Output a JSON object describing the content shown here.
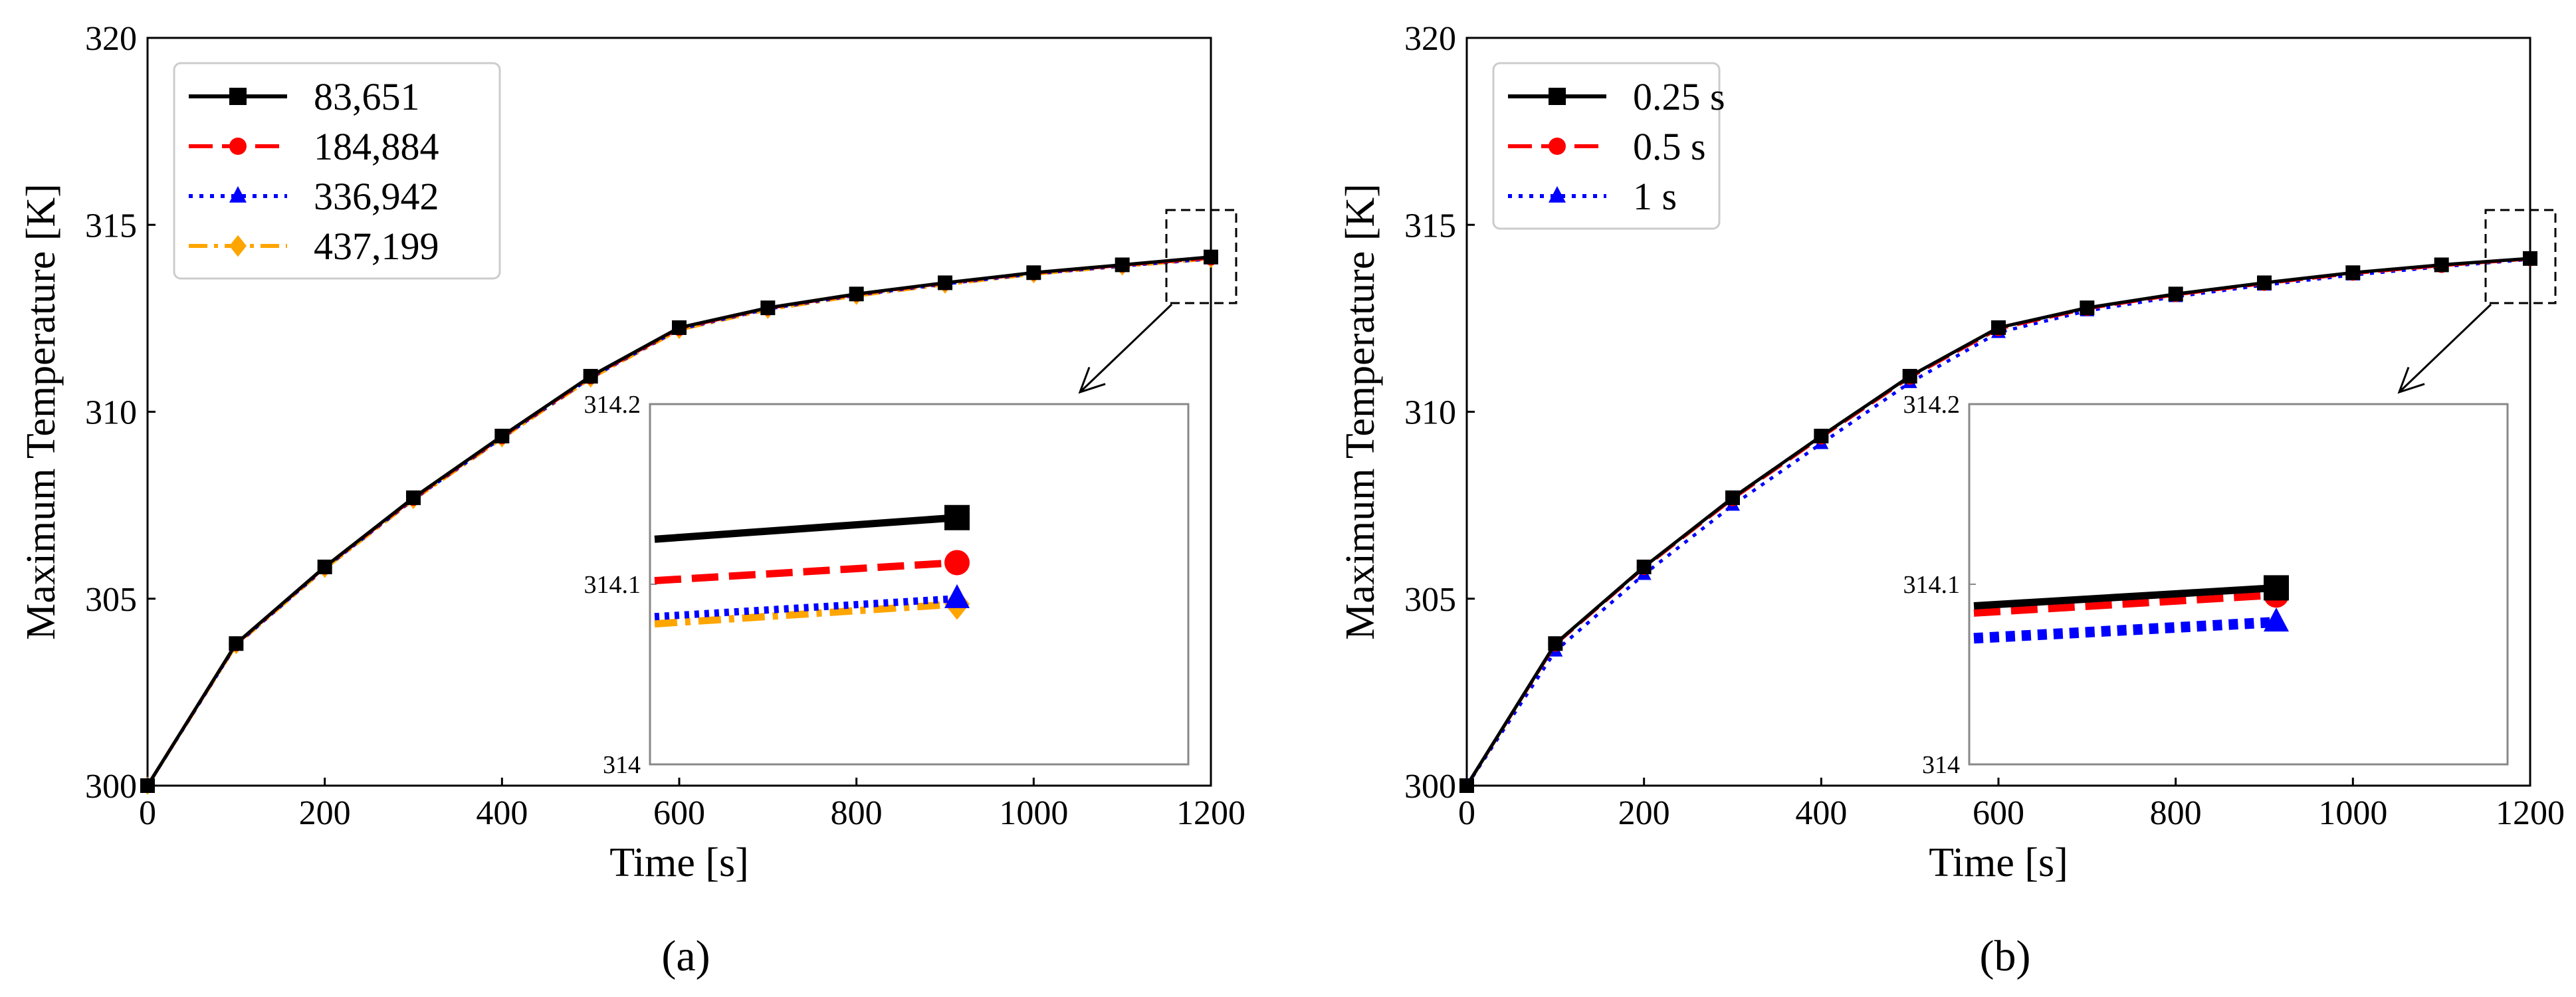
{
  "chart_data": [
    {
      "id": "a",
      "type": "line",
      "caption": "(a)",
      "xlabel": "Time [s]",
      "ylabel": "Maximum Temperature [K]",
      "xlim": [
        0,
        1200
      ],
      "ylim": [
        300,
        320
      ],
      "xticks": [
        0,
        200,
        400,
        600,
        800,
        1000,
        1200
      ],
      "yticks": [
        300,
        305,
        310,
        315,
        320
      ],
      "grid": false,
      "legend_loc": "top-left",
      "x": [
        0,
        100,
        200,
        300,
        400,
        500,
        600,
        700,
        800,
        900,
        1000,
        1100,
        1200
      ],
      "series": [
        {
          "name": "83,651",
          "color": "#000000",
          "dash": "solid",
          "marker": "square",
          "values": [
            300.0,
            303.8,
            305.85,
            307.7,
            309.35,
            310.95,
            312.25,
            312.78,
            313.15,
            313.45,
            313.72,
            313.93,
            314.14
          ]
        },
        {
          "name": "184,884",
          "color": "#ff0000",
          "dash": "dashed",
          "marker": "circle",
          "values": [
            300.0,
            303.79,
            305.84,
            307.68,
            309.33,
            310.93,
            312.23,
            312.77,
            313.14,
            313.44,
            313.71,
            313.92,
            314.11
          ]
        },
        {
          "name": "336,942",
          "color": "#0000ff",
          "dash": "dotted",
          "marker": "triangle",
          "values": [
            300.0,
            303.77,
            305.82,
            307.66,
            309.31,
            310.91,
            312.21,
            312.75,
            313.12,
            313.42,
            313.69,
            313.9,
            314.09
          ]
        },
        {
          "name": "437,199",
          "color": "#ffa500",
          "dash": "dashdot",
          "marker": "diamond",
          "values": [
            300.0,
            303.76,
            305.8,
            307.64,
            309.29,
            310.89,
            312.19,
            312.73,
            313.1,
            313.4,
            313.68,
            313.89,
            314.09
          ]
        }
      ],
      "inset": {
        "ylim": [
          314,
          314.2
        ],
        "yticks": [
          "314",
          "314.1",
          "314.2"
        ],
        "xlim": [
          1100,
          1200
        ],
        "x": [
          1100,
          1200
        ],
        "series_values": [
          [
            314.125,
            314.137
          ],
          [
            314.102,
            314.112
          ],
          [
            314.082,
            314.092
          ],
          [
            314.078,
            314.089
          ]
        ]
      }
    },
    {
      "id": "b",
      "type": "line",
      "caption": "(b)",
      "xlabel": "Time [s]",
      "ylabel": "Maximum Temperature [K]",
      "xlim": [
        0,
        1200
      ],
      "ylim": [
        300,
        320
      ],
      "xticks": [
        0,
        200,
        400,
        600,
        800,
        1000,
        1200
      ],
      "yticks": [
        300,
        305,
        310,
        315,
        320
      ],
      "grid": false,
      "legend_loc": "top-left",
      "x": [
        0,
        100,
        200,
        300,
        400,
        500,
        600,
        700,
        800,
        900,
        1000,
        1100,
        1200
      ],
      "series": [
        {
          "name": "0.25 s",
          "color": "#000000",
          "dash": "solid",
          "marker": "square",
          "values": [
            300.0,
            303.8,
            305.85,
            307.7,
            309.35,
            310.95,
            312.25,
            312.78,
            313.15,
            313.45,
            313.72,
            313.93,
            314.1
          ]
        },
        {
          "name": "0.5 s",
          "color": "#ff0000",
          "dash": "dashed",
          "marker": "circle",
          "values": [
            300.0,
            303.78,
            305.83,
            307.67,
            309.32,
            310.92,
            312.22,
            312.76,
            313.13,
            313.43,
            313.7,
            313.91,
            314.09
          ]
        },
        {
          "name": "1 s",
          "color": "#0000ff",
          "dash": "dotted",
          "marker": "triangle",
          "values": [
            300.0,
            303.6,
            305.65,
            307.5,
            309.15,
            310.78,
            312.12,
            312.7,
            313.08,
            313.39,
            313.66,
            313.88,
            314.08
          ]
        }
      ],
      "inset": {
        "ylim": [
          314,
          314.2
        ],
        "yticks": [
          "314",
          "314.1",
          "314.2"
        ],
        "xlim": [
          1100,
          1200
        ],
        "x": [
          1100,
          1200
        ],
        "series_values": [
          [
            314.088,
            314.098
          ],
          [
            314.084,
            314.094
          ],
          [
            314.07,
            314.079
          ]
        ]
      }
    }
  ]
}
